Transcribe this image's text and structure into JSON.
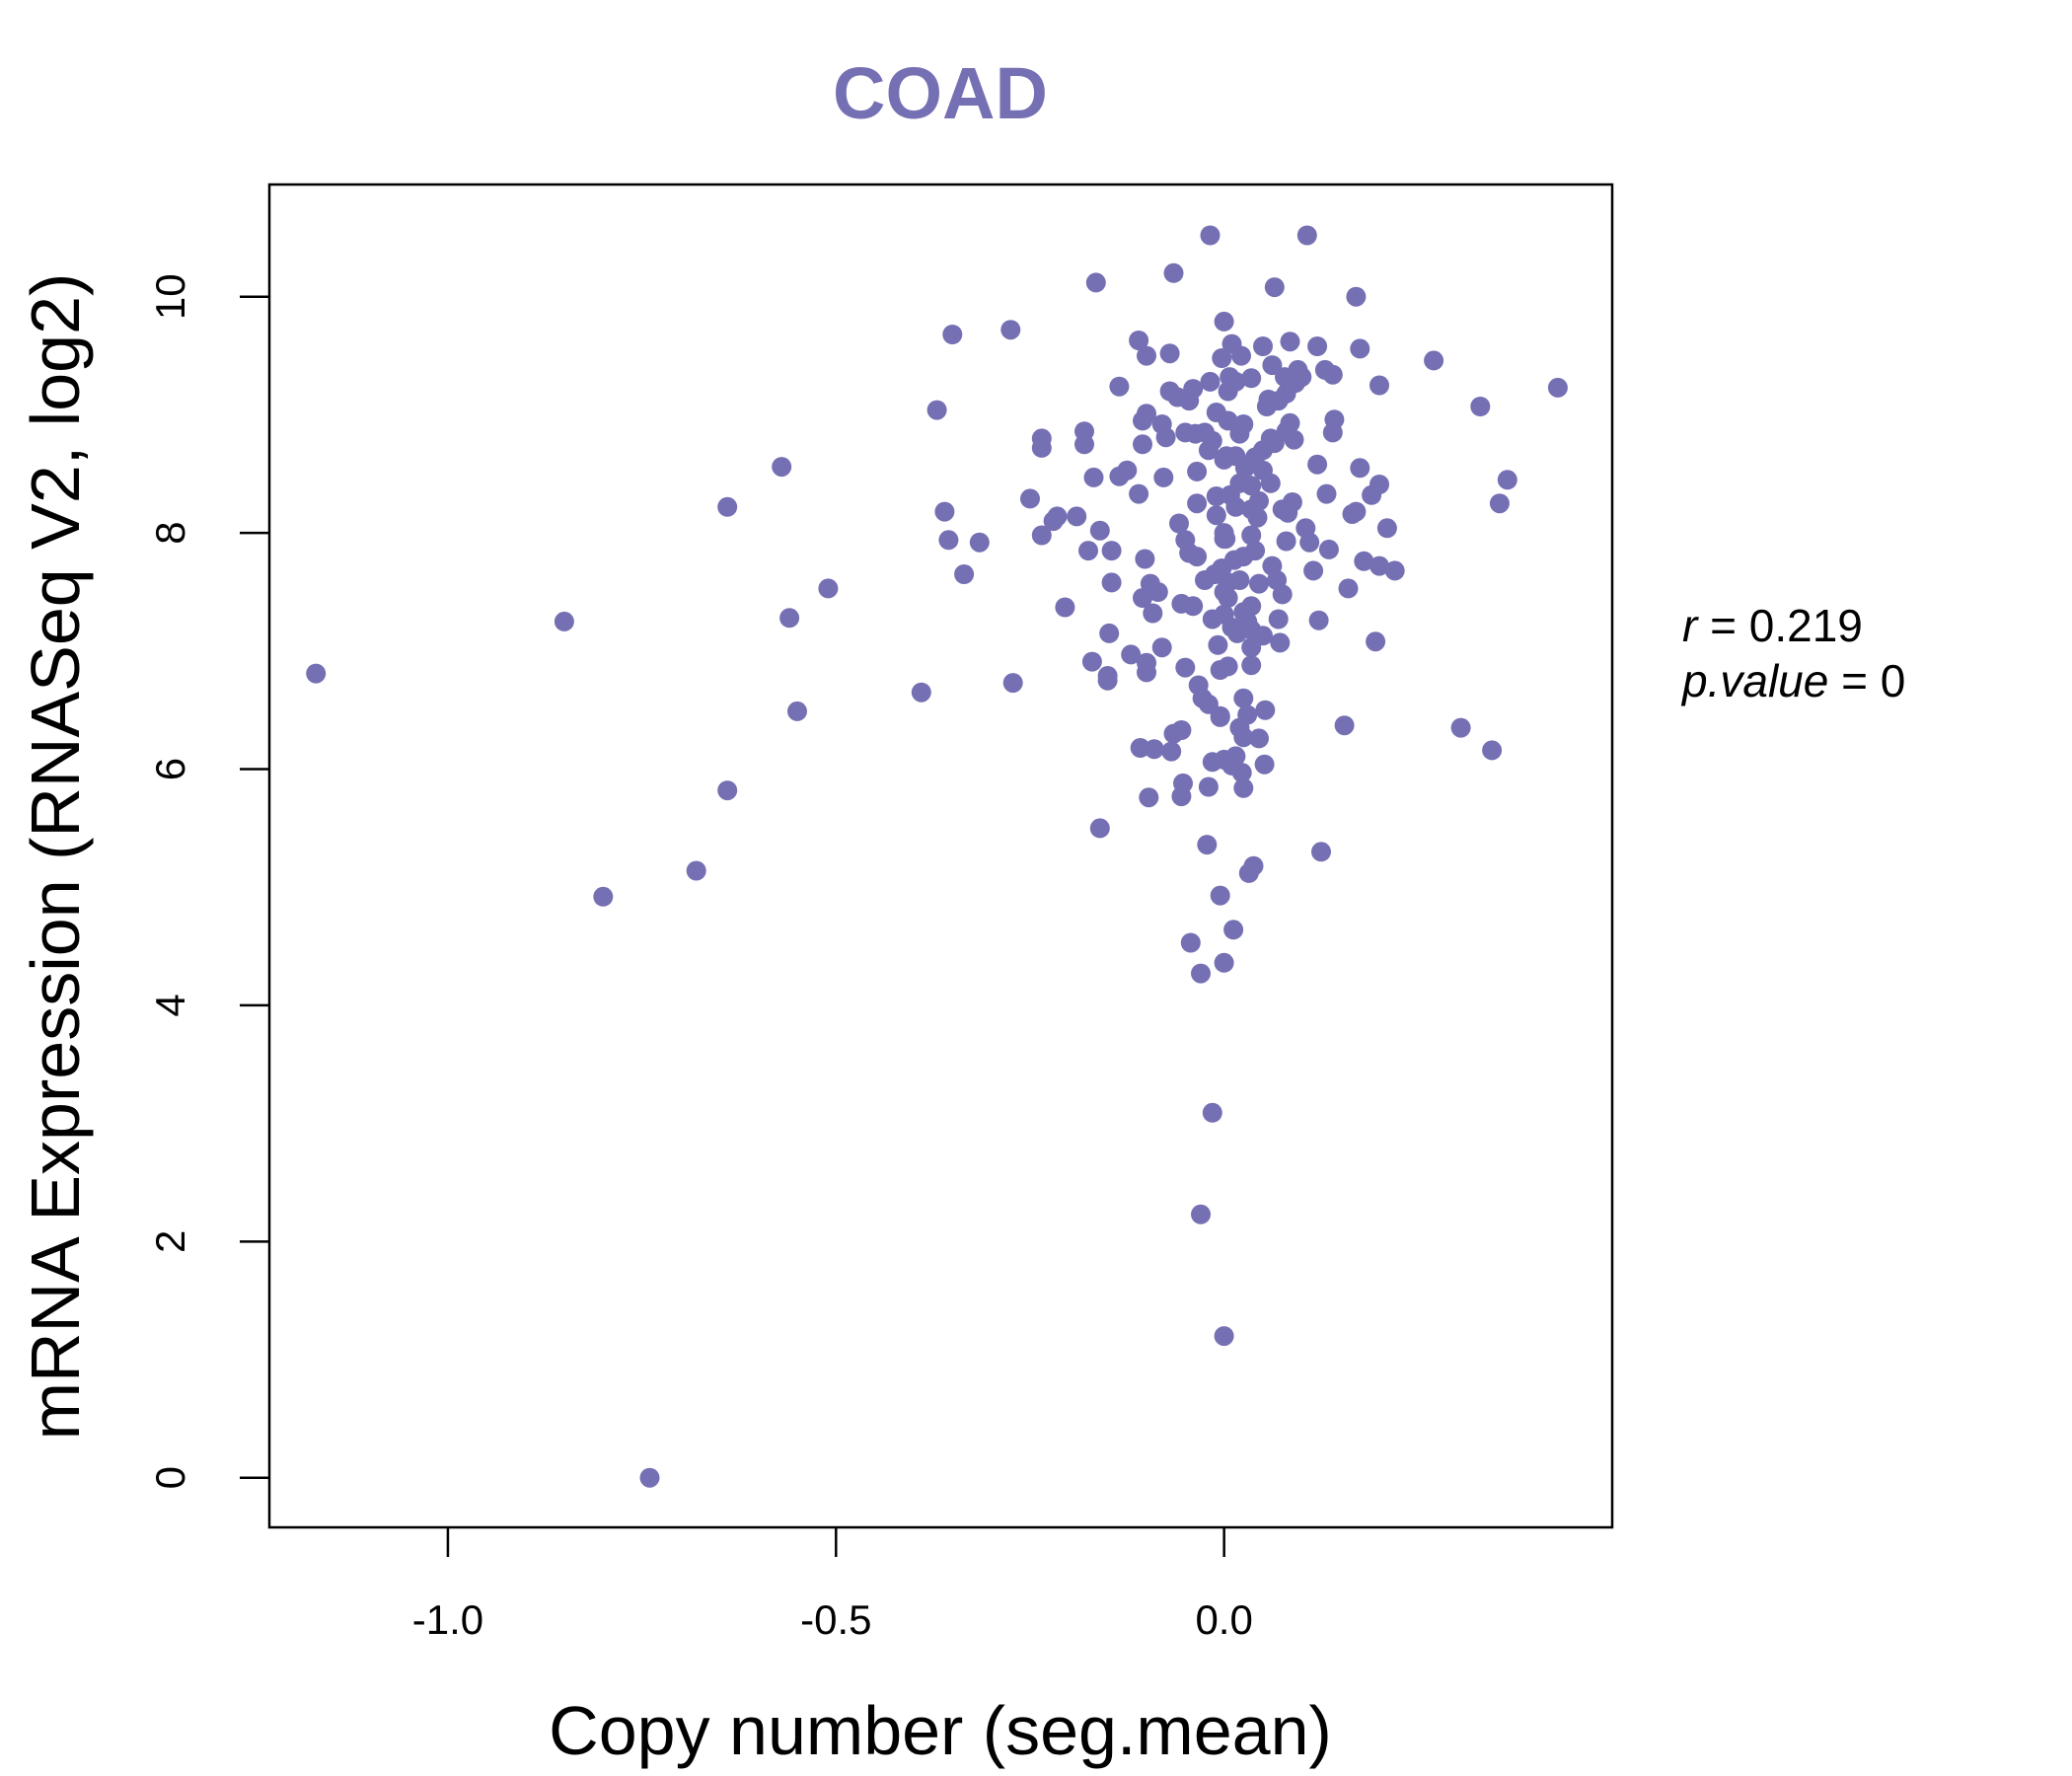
{
  "chart_data": {
    "type": "scatter",
    "title": "COAD",
    "xlabel": "Copy number (seg.mean)",
    "ylabel": "mRNA Expression (RNASeq V2, log2)",
    "xlim": [
      -1.23,
      0.5
    ],
    "ylim": [
      -0.42,
      10.95
    ],
    "x_ticks": [
      -1.0,
      -0.5,
      0.0
    ],
    "x_tick_labels": [
      "-1.0",
      "-0.5",
      "0.0"
    ],
    "y_ticks": [
      0,
      2,
      4,
      6,
      8,
      10
    ],
    "y_tick_labels": [
      "0",
      "2",
      "4",
      "6",
      "8",
      "10"
    ],
    "color": "#7570b3",
    "annotation": {
      "r_label": "r",
      "r_value": "0.219",
      "p_label": "p.value",
      "p_value": "0"
    },
    "points": [
      [
        -1.17,
        6.81
      ],
      [
        -0.85,
        7.25
      ],
      [
        -0.8,
        4.92
      ],
      [
        -0.74,
        0.0
      ],
      [
        -0.68,
        5.14
      ],
      [
        -0.64,
        5.82
      ],
      [
        -0.64,
        8.22
      ],
      [
        -0.57,
        8.56
      ],
      [
        -0.56,
        7.28
      ],
      [
        -0.55,
        6.49
      ],
      [
        -0.51,
        7.53
      ],
      [
        -0.39,
        6.65
      ],
      [
        -0.37,
        9.04
      ],
      [
        -0.36,
        8.18
      ],
      [
        -0.355,
        7.94
      ],
      [
        -0.35,
        9.68
      ],
      [
        -0.335,
        7.65
      ],
      [
        -0.315,
        7.92
      ],
      [
        -0.275,
        9.72
      ],
      [
        -0.272,
        6.73
      ],
      [
        -0.25,
        8.29
      ],
      [
        -0.235,
        8.8
      ],
      [
        -0.235,
        8.72
      ],
      [
        -0.235,
        7.98
      ],
      [
        -0.22,
        8.1
      ],
      [
        -0.215,
        8.14
      ],
      [
        -0.205,
        7.37
      ],
      [
        -0.19,
        8.14
      ],
      [
        -0.18,
        8.86
      ],
      [
        -0.18,
        8.75
      ],
      [
        -0.175,
        7.85
      ],
      [
        -0.17,
        6.91
      ],
      [
        -0.168,
        8.47
      ],
      [
        -0.165,
        10.12
      ],
      [
        -0.16,
        8.02
      ],
      [
        -0.16,
        5.5
      ],
      [
        -0.15,
        6.75
      ],
      [
        -0.15,
        6.79
      ],
      [
        -0.148,
        7.15
      ],
      [
        -0.145,
        7.58
      ],
      [
        -0.145,
        7.85
      ],
      [
        -0.135,
        8.48
      ],
      [
        -0.135,
        9.24
      ],
      [
        -0.125,
        8.53
      ],
      [
        -0.12,
        6.97
      ],
      [
        -0.11,
        9.63
      ],
      [
        -0.11,
        8.33
      ],
      [
        -0.108,
        6.18
      ],
      [
        -0.105,
        8.95
      ],
      [
        -0.105,
        8.75
      ],
      [
        -0.105,
        7.45
      ],
      [
        -0.102,
        7.78
      ],
      [
        -0.1,
        9.5
      ],
      [
        -0.1,
        9.01
      ],
      [
        -0.1,
        6.82
      ],
      [
        -0.1,
        6.9
      ],
      [
        -0.097,
        5.76
      ],
      [
        -0.095,
        7.57
      ],
      [
        -0.092,
        7.32
      ],
      [
        -0.09,
        6.17
      ],
      [
        -0.085,
        7.5
      ],
      [
        -0.08,
        8.92
      ],
      [
        -0.08,
        7.03
      ],
      [
        -0.078,
        8.47
      ],
      [
        -0.075,
        8.81
      ],
      [
        -0.07,
        9.52
      ],
      [
        -0.07,
        9.2
      ],
      [
        -0.068,
        6.15
      ],
      [
        -0.065,
        6.3
      ],
      [
        -0.065,
        10.2
      ],
      [
        -0.06,
        9.15
      ],
      [
        -0.058,
        8.08
      ],
      [
        -0.055,
        7.4
      ],
      [
        -0.055,
        6.33
      ],
      [
        -0.055,
        5.77
      ],
      [
        -0.053,
        5.88
      ],
      [
        -0.05,
        8.85
      ],
      [
        -0.05,
        7.94
      ],
      [
        -0.05,
        6.86
      ],
      [
        -0.045,
        9.12
      ],
      [
        -0.045,
        7.83
      ],
      [
        -0.043,
        4.53
      ],
      [
        -0.04,
        7.38
      ],
      [
        -0.04,
        9.22
      ],
      [
        -0.037,
        8.84
      ],
      [
        -0.035,
        7.8
      ],
      [
        -0.035,
        8.52
      ],
      [
        -0.035,
        8.25
      ],
      [
        -0.033,
        6.71
      ],
      [
        -0.03,
        4.27
      ],
      [
        -0.03,
        2.23
      ],
      [
        -0.028,
        6.6
      ],
      [
        -0.025,
        7.6
      ],
      [
        -0.025,
        8.85
      ],
      [
        -0.022,
        5.36
      ],
      [
        -0.02,
        6.55
      ],
      [
        -0.02,
        5.85
      ],
      [
        -0.02,
        8.7
      ],
      [
        -0.018,
        10.52
      ],
      [
        -0.018,
        9.28
      ],
      [
        -0.015,
        8.78
      ],
      [
        -0.015,
        7.27
      ],
      [
        -0.015,
        6.06
      ],
      [
        -0.015,
        3.09
      ],
      [
        -0.012,
        7.65
      ],
      [
        -0.01,
        9.02
      ],
      [
        -0.01,
        8.15
      ],
      [
        -0.01,
        8.31
      ],
      [
        -0.008,
        7.05
      ],
      [
        -0.005,
        6.84
      ],
      [
        -0.005,
        6.44
      ],
      [
        -0.005,
        6.45
      ],
      [
        -0.005,
        4.93
      ],
      [
        -0.003,
        9.48
      ],
      [
        -0.003,
        7.7
      ],
      [
        0.0,
        9.79
      ],
      [
        0.0,
        7.95
      ],
      [
        0.0,
        8.0
      ],
      [
        0.0,
        8.62
      ],
      [
        0.0,
        7.5
      ],
      [
        0.0,
        7.31
      ],
      [
        0.0,
        6.08
      ],
      [
        0.0,
        4.36
      ],
      [
        0.0,
        1.2
      ],
      [
        0.002,
        7.95
      ],
      [
        0.003,
        8.65
      ],
      [
        0.005,
        9.2
      ],
      [
        0.005,
        8.95
      ],
      [
        0.005,
        7.45
      ],
      [
        0.005,
        7.58
      ],
      [
        0.005,
        6.87
      ],
      [
        0.007,
        9.32
      ],
      [
        0.008,
        8.32
      ],
      [
        0.01,
        9.6
      ],
      [
        0.01,
        7.2
      ],
      [
        0.01,
        6.03
      ],
      [
        0.012,
        4.64
      ],
      [
        0.013,
        7.77
      ],
      [
        0.015,
        8.22
      ],
      [
        0.015,
        9.28
      ],
      [
        0.015,
        8.65
      ],
      [
        0.015,
        6.11
      ],
      [
        0.017,
        7.15
      ],
      [
        0.02,
        8.84
      ],
      [
        0.02,
        7.6
      ],
      [
        0.02,
        8.42
      ],
      [
        0.02,
        6.35
      ],
      [
        0.022,
        9.5
      ],
      [
        0.023,
        5.97
      ],
      [
        0.025,
        8.92
      ],
      [
        0.025,
        7.8
      ],
      [
        0.025,
        7.33
      ],
      [
        0.025,
        6.6
      ],
      [
        0.025,
        6.27
      ],
      [
        0.025,
        5.84
      ],
      [
        0.027,
        8.55
      ],
      [
        0.03,
        7.25
      ],
      [
        0.03,
        6.46
      ],
      [
        0.032,
        5.12
      ],
      [
        0.035,
        9.31
      ],
      [
        0.035,
        8.4
      ],
      [
        0.035,
        8.2
      ],
      [
        0.035,
        7.98
      ],
      [
        0.035,
        7.38
      ],
      [
        0.035,
        7.18
      ],
      [
        0.035,
        7.03
      ],
      [
        0.035,
        6.88
      ],
      [
        0.038,
        5.18
      ],
      [
        0.04,
        8.64
      ],
      [
        0.04,
        7.85
      ],
      [
        0.043,
        8.13
      ],
      [
        0.045,
        8.27
      ],
      [
        0.045,
        7.57
      ],
      [
        0.045,
        6.26
      ],
      [
        0.05,
        9.58
      ],
      [
        0.05,
        8.7
      ],
      [
        0.05,
        8.53
      ],
      [
        0.05,
        7.13
      ],
      [
        0.052,
        6.04
      ],
      [
        0.053,
        6.5
      ],
      [
        0.055,
        9.07
      ],
      [
        0.057,
        9.13
      ],
      [
        0.06,
        8.8
      ],
      [
        0.06,
        8.42
      ],
      [
        0.062,
        9.42
      ],
      [
        0.062,
        7.72
      ],
      [
        0.065,
        10.08
      ],
      [
        0.065,
        8.76
      ],
      [
        0.068,
        7.6
      ],
      [
        0.07,
        9.12
      ],
      [
        0.07,
        7.27
      ],
      [
        0.072,
        7.07
      ],
      [
        0.075,
        8.2
      ],
      [
        0.075,
        7.48
      ],
      [
        0.078,
        9.32
      ],
      [
        0.08,
        9.18
      ],
      [
        0.08,
        8.86
      ],
      [
        0.08,
        7.93
      ],
      [
        0.082,
        8.17
      ],
      [
        0.085,
        9.62
      ],
      [
        0.085,
        8.93
      ],
      [
        0.088,
        8.26
      ],
      [
        0.09,
        8.79
      ],
      [
        0.092,
        9.27
      ],
      [
        0.095,
        9.38
      ],
      [
        0.1,
        9.32
      ],
      [
        0.105,
        8.04
      ],
      [
        0.107,
        10.52
      ],
      [
        0.11,
        7.92
      ],
      [
        0.115,
        7.68
      ],
      [
        0.12,
        9.58
      ],
      [
        0.12,
        8.58
      ],
      [
        0.122,
        7.26
      ],
      [
        0.125,
        5.3
      ],
      [
        0.13,
        9.38
      ],
      [
        0.132,
        8.33
      ],
      [
        0.135,
        7.86
      ],
      [
        0.14,
        9.34
      ],
      [
        0.14,
        8.85
      ],
      [
        0.142,
        8.96
      ],
      [
        0.155,
        6.37
      ],
      [
        0.16,
        7.53
      ],
      [
        0.165,
        8.16
      ],
      [
        0.17,
        8.18
      ],
      [
        0.17,
        10.0
      ],
      [
        0.175,
        9.56
      ],
      [
        0.175,
        8.55
      ],
      [
        0.18,
        7.76
      ],
      [
        0.19,
        8.32
      ],
      [
        0.195,
        7.08
      ],
      [
        0.2,
        8.41
      ],
      [
        0.2,
        9.25
      ],
      [
        0.2,
        7.72
      ],
      [
        0.21,
        8.04
      ],
      [
        0.22,
        7.68
      ],
      [
        0.27,
        9.46
      ],
      [
        0.305,
        6.35
      ],
      [
        0.33,
        9.07
      ],
      [
        0.345,
        6.16
      ],
      [
        0.355,
        8.25
      ],
      [
        0.365,
        8.45
      ],
      [
        0.43,
        9.23
      ]
    ]
  }
}
